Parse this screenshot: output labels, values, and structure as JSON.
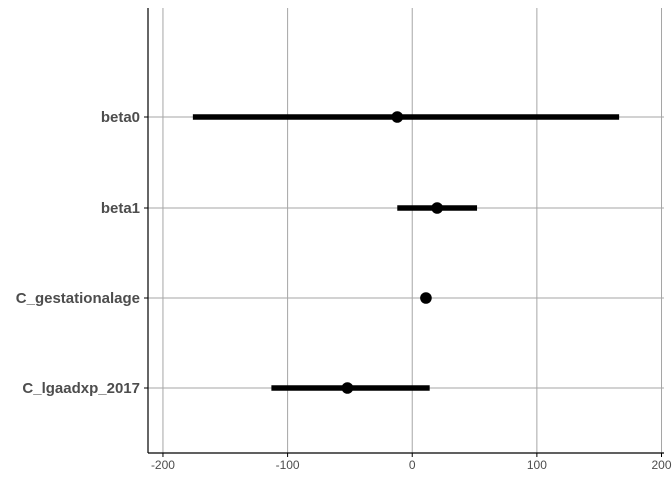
{
  "chart_data": {
    "type": "scatter",
    "subtype": "forest-plot",
    "title": "",
    "xlabel": "",
    "ylabel": "",
    "xlim": [
      -212,
      202
    ],
    "xticks": [
      -200,
      -100,
      0,
      100,
      200
    ],
    "xtick_labels": [
      "-200",
      "-100",
      "0",
      "100",
      "200"
    ],
    "grid": true,
    "legend": "none",
    "colors": {
      "marks": "#000000",
      "grid": "#a6a6a6",
      "axis": "#000000",
      "tick_text": "#4d4d4d"
    },
    "categories": [
      "beta0",
      "beta1",
      "C_gestationalage",
      "C_lgaadxp_2017"
    ],
    "series": [
      {
        "estimates": [
          -12,
          20,
          11,
          -52
        ],
        "lower": [
          -176,
          -12,
          11,
          -113
        ],
        "upper": [
          166,
          52,
          11,
          14
        ]
      }
    ]
  }
}
